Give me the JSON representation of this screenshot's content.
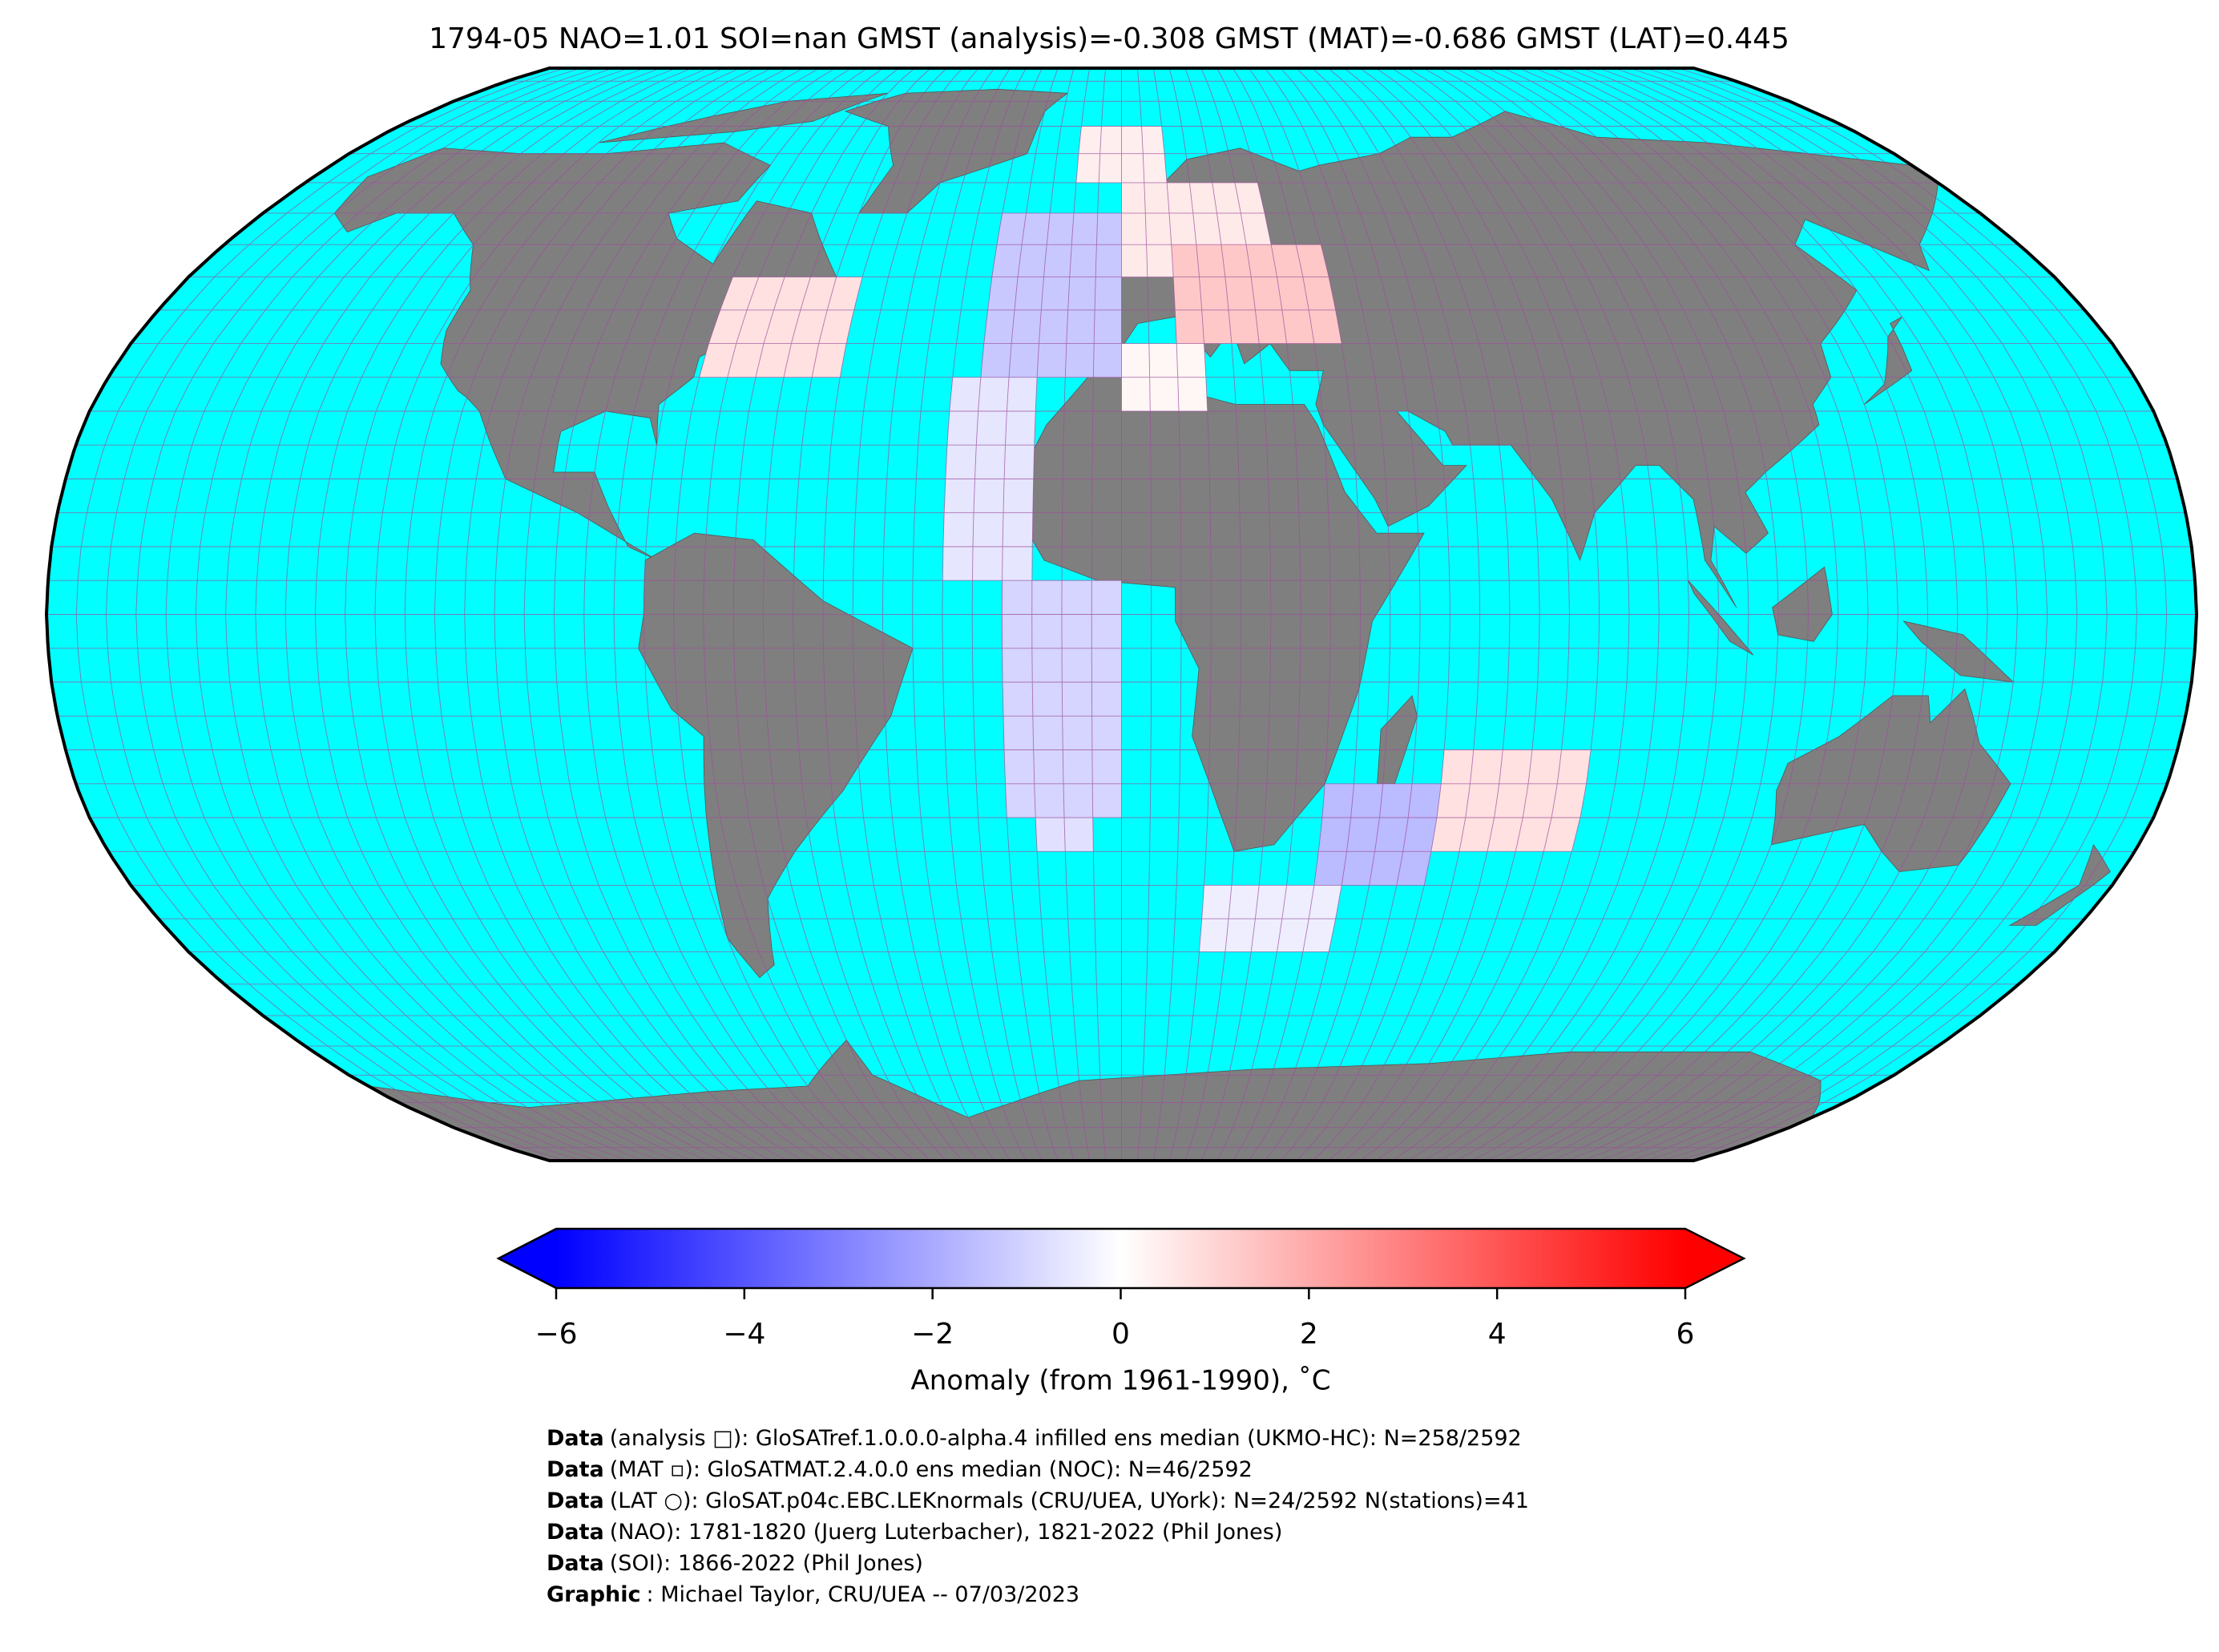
{
  "chart_data": {
    "type": "map",
    "title": "1794-05 NAO=1.01 SOI=nan GMST (analysis)=-0.308 GMST (MAT)=-0.686 GMST (LAT)=0.445",
    "projection": "robinson",
    "colors": {
      "ocean": "#00ffff",
      "land": "#7f7f7f",
      "grid": "#9b4f9b"
    },
    "cells": [
      {
        "lon": [
          -75,
          -50
        ],
        "lat": [
          35,
          50
        ],
        "value": 0.7
      },
      {
        "lon": [
          -10,
          10
        ],
        "lat": [
          65,
          75
        ],
        "value": 0.4
      },
      {
        "lon": [
          0,
          30
        ],
        "lat": [
          50,
          65
        ],
        "value": 0.5
      },
      {
        "lon": [
          10,
          40
        ],
        "lat": [
          40,
          55
        ],
        "value": 1.3
      },
      {
        "lon": [
          -25,
          0
        ],
        "lat": [
          35,
          60
        ],
        "value": -1.3
      },
      {
        "lon": [
          -30,
          -15
        ],
        "lat": [
          5,
          35
        ],
        "value": -0.6
      },
      {
        "lon": [
          0,
          15
        ],
        "lat": [
          30,
          40
        ],
        "value": 0.2
      },
      {
        "lon": [
          -20,
          0
        ],
        "lat": [
          -30,
          5
        ],
        "value": -1.0
      },
      {
        "lon": [
          -15,
          -5
        ],
        "lat": [
          -35,
          -30
        ],
        "value": -0.7
      },
      {
        "lon": [
          35,
          55
        ],
        "lat": [
          -40,
          -25
        ],
        "value": -1.6
      },
      {
        "lon": [
          55,
          80
        ],
        "lat": [
          -35,
          -20
        ],
        "value": 0.7
      },
      {
        "lon": [
          15,
          40
        ],
        "lat": [
          -50,
          -40
        ],
        "value": -0.4
      }
    ],
    "colorbar": {
      "label": "Anomaly (from 1961-1990), ˚C",
      "lim": [
        -6,
        6
      ],
      "ticks": [
        {
          "value": -6,
          "label": "−6"
        },
        {
          "value": -4,
          "label": "−4"
        },
        {
          "value": -2,
          "label": "−2"
        },
        0,
        2,
        4,
        6
      ]
    },
    "credits": [
      {
        "bold": "Data",
        "text": "(analysis □): GloSATref.1.0.0.0-alpha.4 infilled ens median (UKMO-HC): N=258/2592"
      },
      {
        "bold": "Data",
        "text": "(MAT ▫): GloSATMAT.2.4.0.0 ens median (NOC): N=46/2592"
      },
      {
        "bold": "Data",
        "text": "(LAT ○): GloSAT.p04c.EBC.LEKnormals (CRU/UEA, UYork): N=24/2592 N(stations)=41"
      },
      {
        "bold": "Data",
        "text": "(NAO): 1781-1820 (Juerg Luterbacher), 1821-2022 (Phil Jones)"
      },
      {
        "bold": "Data",
        "text": "(SOI): 1866-2022 (Phil Jones)"
      },
      {
        "bold": "Graphic",
        "text": ": Michael Taylor, CRU/UEA -- 07/03/2023"
      }
    ]
  }
}
